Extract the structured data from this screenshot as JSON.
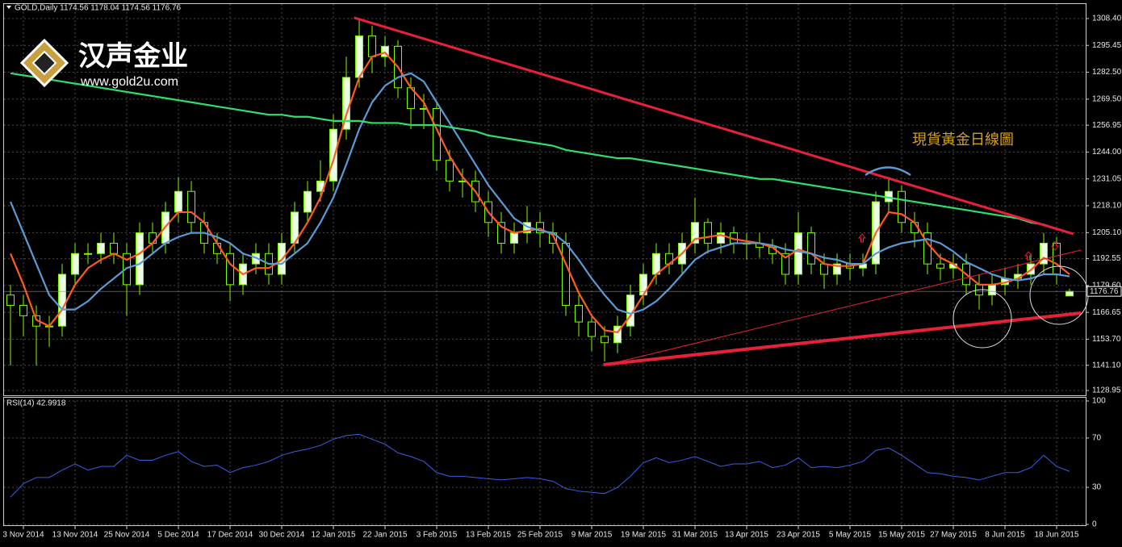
{
  "chart_data": [
    {
      "type": "candlestick",
      "title": "GOLD,Daily  1174.56 1178.04 1174.56 1176.76",
      "annotation": "現貨黃金日線圖",
      "logo": {
        "name": "汉声金业",
        "url": "www.gold2u.com"
      },
      "categories": [
        null,
        "3 Nov 2014",
        null,
        null,
        null,
        "13 Nov 2014",
        null,
        null,
        null,
        "25 Nov 2014",
        null,
        null,
        null,
        "5 Dec 2014",
        null,
        null,
        null,
        "17 Dec 2014",
        null,
        null,
        null,
        "30 Dec 2014",
        null,
        null,
        null,
        "12 Jan 2015",
        null,
        null,
        null,
        "22 Jan 2015",
        null,
        null,
        null,
        "3 Feb 2015",
        null,
        null,
        null,
        "13 Feb 2015",
        null,
        null,
        null,
        "25 Feb 2015",
        null,
        null,
        null,
        "9 Mar 2015",
        null,
        null,
        null,
        "19 Mar 2015",
        null,
        null,
        null,
        "31 Mar 2015",
        null,
        null,
        null,
        "13 Apr 2015",
        null,
        null,
        null,
        "23 Apr 2015",
        null,
        null,
        null,
        "5 May 2015",
        null,
        null,
        null,
        "15 May 2015",
        null,
        null,
        null,
        "27 May 2015",
        null,
        null,
        null,
        "8 Jun 2015",
        null,
        null,
        null,
        "18 Jun 2015",
        null
      ],
      "open": [
        1175,
        1170,
        1165,
        1160,
        1160,
        1185,
        1195,
        1195,
        1200,
        1195,
        1180,
        1205,
        1200,
        1215,
        1225,
        1210,
        1200,
        1195,
        1180,
        1190,
        1195,
        1185,
        1200,
        1215,
        1225,
        1230,
        1255,
        1280,
        1300,
        1290,
        1295,
        1275,
        1265,
        1265,
        1240,
        1230,
        1230,
        1220,
        1210,
        1200,
        1205,
        1210,
        1205,
        1200,
        1170,
        1162,
        1155,
        1152,
        1160,
        1175,
        1185,
        1195,
        1190,
        1200,
        1210,
        1200,
        1205,
        1200,
        1200,
        1198,
        1195,
        1185,
        1205,
        1190,
        1185,
        1190,
        1188,
        1190,
        1220,
        1225,
        1210,
        1205,
        1190,
        1188,
        1190,
        1180,
        1175,
        1180,
        1183,
        1185,
        1190,
        1200,
        1174.56
      ],
      "high": [
        1180,
        1175,
        1170,
        1165,
        1190,
        1200,
        1200,
        1205,
        1205,
        1200,
        1210,
        1210,
        1220,
        1232,
        1230,
        1215,
        1205,
        1200,
        1195,
        1200,
        1200,
        1205,
        1220,
        1230,
        1240,
        1262,
        1290,
        1308,
        1305,
        1300,
        1298,
        1280,
        1272,
        1268,
        1245,
        1236,
        1235,
        1225,
        1215,
        1210,
        1218,
        1215,
        1210,
        1205,
        1175,
        1166,
        1160,
        1165,
        1180,
        1190,
        1200,
        1200,
        1205,
        1222,
        1212,
        1210,
        1208,
        1205,
        1205,
        1202,
        1200,
        1215,
        1208,
        1195,
        1195,
        1195,
        1195,
        1225,
        1232,
        1228,
        1215,
        1210,
        1195,
        1195,
        1195,
        1185,
        1185,
        1188,
        1190,
        1195,
        1205,
        1203,
        1178.04
      ],
      "low": [
        1141,
        1155,
        1141,
        1150,
        1155,
        1180,
        1190,
        1190,
        1190,
        1165,
        1175,
        1195,
        1195,
        1210,
        1205,
        1195,
        1190,
        1172,
        1175,
        1185,
        1180,
        1180,
        1195,
        1210,
        1220,
        1225,
        1250,
        1275,
        1282,
        1285,
        1270,
        1255,
        1255,
        1235,
        1225,
        1222,
        1215,
        1203,
        1195,
        1195,
        1200,
        1198,
        1195,
        1165,
        1155,
        1148,
        1143,
        1147,
        1155,
        1170,
        1180,
        1185,
        1185,
        1195,
        1195,
        1195,
        1195,
        1192,
        1193,
        1190,
        1180,
        1180,
        1185,
        1178,
        1180,
        1182,
        1184,
        1185,
        1215,
        1205,
        1198,
        1185,
        1182,
        1183,
        1175,
        1168,
        1170,
        1175,
        1178,
        1180,
        1185,
        1180,
        1174.56
      ],
      "close": [
        1170,
        1165,
        1160,
        1160,
        1185,
        1195,
        1195,
        1200,
        1195,
        1180,
        1205,
        1200,
        1215,
        1225,
        1210,
        1200,
        1195,
        1180,
        1190,
        1195,
        1185,
        1200,
        1215,
        1225,
        1230,
        1255,
        1280,
        1300,
        1290,
        1295,
        1275,
        1265,
        1265,
        1240,
        1230,
        1230,
        1220,
        1210,
        1200,
        1205,
        1210,
        1205,
        1200,
        1170,
        1162,
        1155,
        1152,
        1160,
        1175,
        1185,
        1195,
        1190,
        1200,
        1210,
        1200,
        1205,
        1200,
        1200,
        1198,
        1195,
        1185,
        1205,
        1190,
        1185,
        1190,
        1188,
        1190,
        1220,
        1225,
        1210,
        1205,
        1190,
        1188,
        1190,
        1180,
        1175,
        1180,
        1183,
        1185,
        1190,
        1200,
        1185,
        1176.76
      ],
      "bull_color": "#e8ffe0",
      "bear_color": "#000000",
      "wick_color": "#7cfc00",
      "series": [
        {
          "color": "#ff5a1f",
          "values": [
            1195,
            1180,
            1163,
            1160,
            1168,
            1180,
            1188,
            1192,
            1195,
            1192,
            1195,
            1200,
            1208,
            1215,
            1215,
            1210,
            1200,
            1190,
            1185,
            1188,
            1188,
            1192,
            1200,
            1210,
            1222,
            1240,
            1262,
            1280,
            1290,
            1292,
            1285,
            1275,
            1268,
            1255,
            1242,
            1232,
            1225,
            1215,
            1208,
            1205,
            1206,
            1207,
            1204,
            1190,
            1176,
            1165,
            1158,
            1157,
            1165,
            1175,
            1185,
            1190,
            1195,
            1202,
            1203,
            1204,
            1202,
            1201,
            1200,
            1198,
            1193,
            1197,
            1195,
            1190,
            1189,
            1189,
            1190,
            1205,
            1215,
            1214,
            1210,
            1200,
            1193,
            1190,
            1185,
            1180,
            1180,
            1181,
            1183,
            1187,
            1193,
            1190,
            1185
          ]
        },
        {
          "color": "#5b9bd5",
          "values": [
            1220,
            1205,
            1190,
            1175,
            1168,
            1168,
            1172,
            1178,
            1183,
            1188,
            1190,
            1195,
            1200,
            1203,
            1205,
            1205,
            1203,
            1200,
            1195,
            1193,
            1190,
            1190,
            1195,
            1200,
            1210,
            1222,
            1238,
            1255,
            1268,
            1276,
            1280,
            1282,
            1278,
            1268,
            1258,
            1248,
            1238,
            1228,
            1220,
            1212,
            1208,
            1206,
            1205,
            1200,
            1192,
            1183,
            1175,
            1168,
            1166,
            1168,
            1172,
            1178,
            1185,
            1192,
            1196,
            1198,
            1200,
            1200,
            1200,
            1199,
            1197,
            1196,
            1195,
            1193,
            1192,
            1190,
            1190,
            1195,
            1198,
            1200,
            1201,
            1202,
            1200,
            1196,
            1191,
            1188,
            1185,
            1183,
            1182,
            1183,
            1185,
            1185,
            1184
          ]
        },
        {
          "color": "#2ee06a",
          "values": [
            1282,
            1281,
            1280,
            1279,
            1278,
            1277,
            1276,
            1275,
            1274,
            1273,
            1272,
            1271,
            1270,
            1269,
            1268,
            1267,
            1266,
            1265,
            1264,
            1263,
            1262,
            1262,
            1261,
            1261,
            1260,
            1259,
            1259,
            1259,
            1258,
            1258,
            1258,
            1257,
            1257,
            1257,
            1256,
            1255,
            1254,
            1252,
            1251,
            1250,
            1249,
            1248,
            1247,
            1245,
            1244,
            1243,
            1242,
            1241,
            1241,
            1240,
            1239,
            1238,
            1237,
            1236,
            1235,
            1234,
            1233,
            1232,
            1231,
            1231,
            1230,
            1229,
            1228,
            1227,
            1226,
            1225,
            1224,
            1223,
            1222,
            1221,
            1220,
            1219,
            1218,
            1217,
            1216,
            1215,
            1214,
            1213,
            1212,
            1210,
            1209,
            1207,
            1205
          ]
        }
      ],
      "lines": [
        {
          "color": "#e8203a",
          "width": 3,
          "x": [
            26.6,
            82.3
          ],
          "y": [
            1308.8,
            1204.5
          ]
        },
        {
          "color": "#e8203a",
          "width": 4,
          "x": [
            45.9,
            82.9
          ],
          "y": [
            1141.4,
            1166.3
          ]
        },
        {
          "color": "#e8203a",
          "width": 1,
          "x": [
            46.7,
            82.9
          ],
          "y": [
            1142.2,
            1196.7
          ]
        }
      ],
      "ylim": [
        1126.6,
        1315.4
      ],
      "yticks": [
        {
          "value": 1128.95,
          "label": "1128.95"
        },
        {
          "value": 1141.1,
          "label": "1141.10"
        },
        {
          "value": 1153.7,
          "label": "1153.70"
        },
        {
          "value": 1166.65,
          "label": "1166.65"
        },
        {
          "value": 1179.6,
          "label": "1179.60"
        },
        {
          "value": 1192.55,
          "label": "1192.55"
        },
        {
          "value": 1205.1,
          "label": "1205.10"
        },
        {
          "value": 1218.1,
          "label": "1218.10"
        },
        {
          "value": 1231.05,
          "label": "1231.05"
        },
        {
          "value": 1244,
          "label": "1244.00"
        },
        {
          "value": 1256.95,
          "label": "1256.95"
        },
        {
          "value": 1269.5,
          "label": "1269.50"
        },
        {
          "value": 1282.5,
          "label": "1282.50"
        },
        {
          "value": 1295.45,
          "label": "1295.45"
        },
        {
          "value": 1308.4,
          "label": "1308.40"
        }
      ],
      "grid": true
    },
    {
      "type": "line",
      "title": "RSI(14) 42.9918",
      "color": "#3b5fe0",
      "values": [
        22,
        33,
        38,
        38,
        44,
        49,
        44,
        47,
        47,
        56,
        52,
        52,
        56,
        59,
        51,
        47,
        48,
        42,
        46,
        48,
        51,
        56,
        59,
        61,
        64,
        69,
        72,
        73,
        69,
        65,
        58,
        55,
        51,
        42,
        39,
        39,
        38,
        37,
        36,
        37,
        38,
        37,
        35,
        29,
        27,
        26,
        25,
        30,
        39,
        50,
        54,
        50,
        52,
        55,
        51,
        47,
        49,
        49,
        51,
        46,
        48,
        54,
        46,
        47,
        46,
        48,
        51,
        60,
        62,
        56,
        49,
        42,
        41,
        39,
        38,
        36,
        39,
        42,
        42,
        46,
        56,
        47,
        42.9918
      ],
      "ylim": [
        0,
        100
      ],
      "yticks": [
        0,
        30,
        70,
        100
      ],
      "grid": true
    }
  ]
}
